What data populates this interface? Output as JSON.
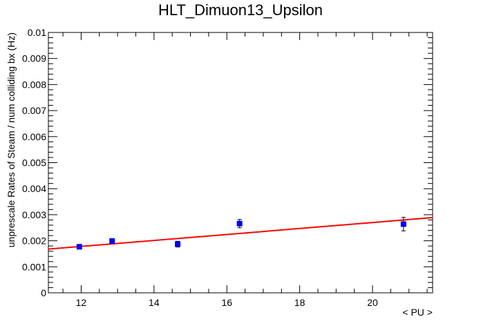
{
  "chart_data": {
    "type": "scatter",
    "title": "HLT_Dimuon13_Upsilon",
    "xlabel": "< PU >",
    "ylabel": "unprescale Rates of Steam / num colliding bx (Hz)",
    "xlim": [
      11.1,
      21.65
    ],
    "ylim": [
      0,
      0.01
    ],
    "x_ticks": [
      12,
      14,
      16,
      18,
      20
    ],
    "x_tick_labels": [
      "12",
      "14",
      "16",
      "18",
      "20"
    ],
    "y_ticks": [
      0,
      0.001,
      0.002,
      0.003,
      0.004,
      0.005,
      0.006,
      0.007,
      0.008,
      0.009,
      0.01
    ],
    "y_tick_labels": [
      "0",
      "0.001",
      "0.002",
      "0.003",
      "0.004",
      "0.005",
      "0.006",
      "0.007",
      "0.008",
      "0.009",
      "0.01"
    ],
    "grid": false,
    "legend": "none",
    "series": [
      {
        "type": "points",
        "color": "#0000ff",
        "points": [
          {
            "x": 11.95,
            "y": 0.00177,
            "err": 6e-05
          },
          {
            "x": 12.85,
            "y": 0.00199,
            "err": 9e-05
          },
          {
            "x": 14.65,
            "y": 0.00187,
            "err": 0.00011
          },
          {
            "x": 16.35,
            "y": 0.00266,
            "err": 0.00016
          },
          {
            "x": 20.85,
            "y": 0.00264,
            "err": 0.00026
          }
        ]
      },
      {
        "type": "fit",
        "color": "#ff0000",
        "x": [
          11.1,
          21.65
        ],
        "y": [
          0.00168,
          0.00289
        ]
      }
    ]
  }
}
